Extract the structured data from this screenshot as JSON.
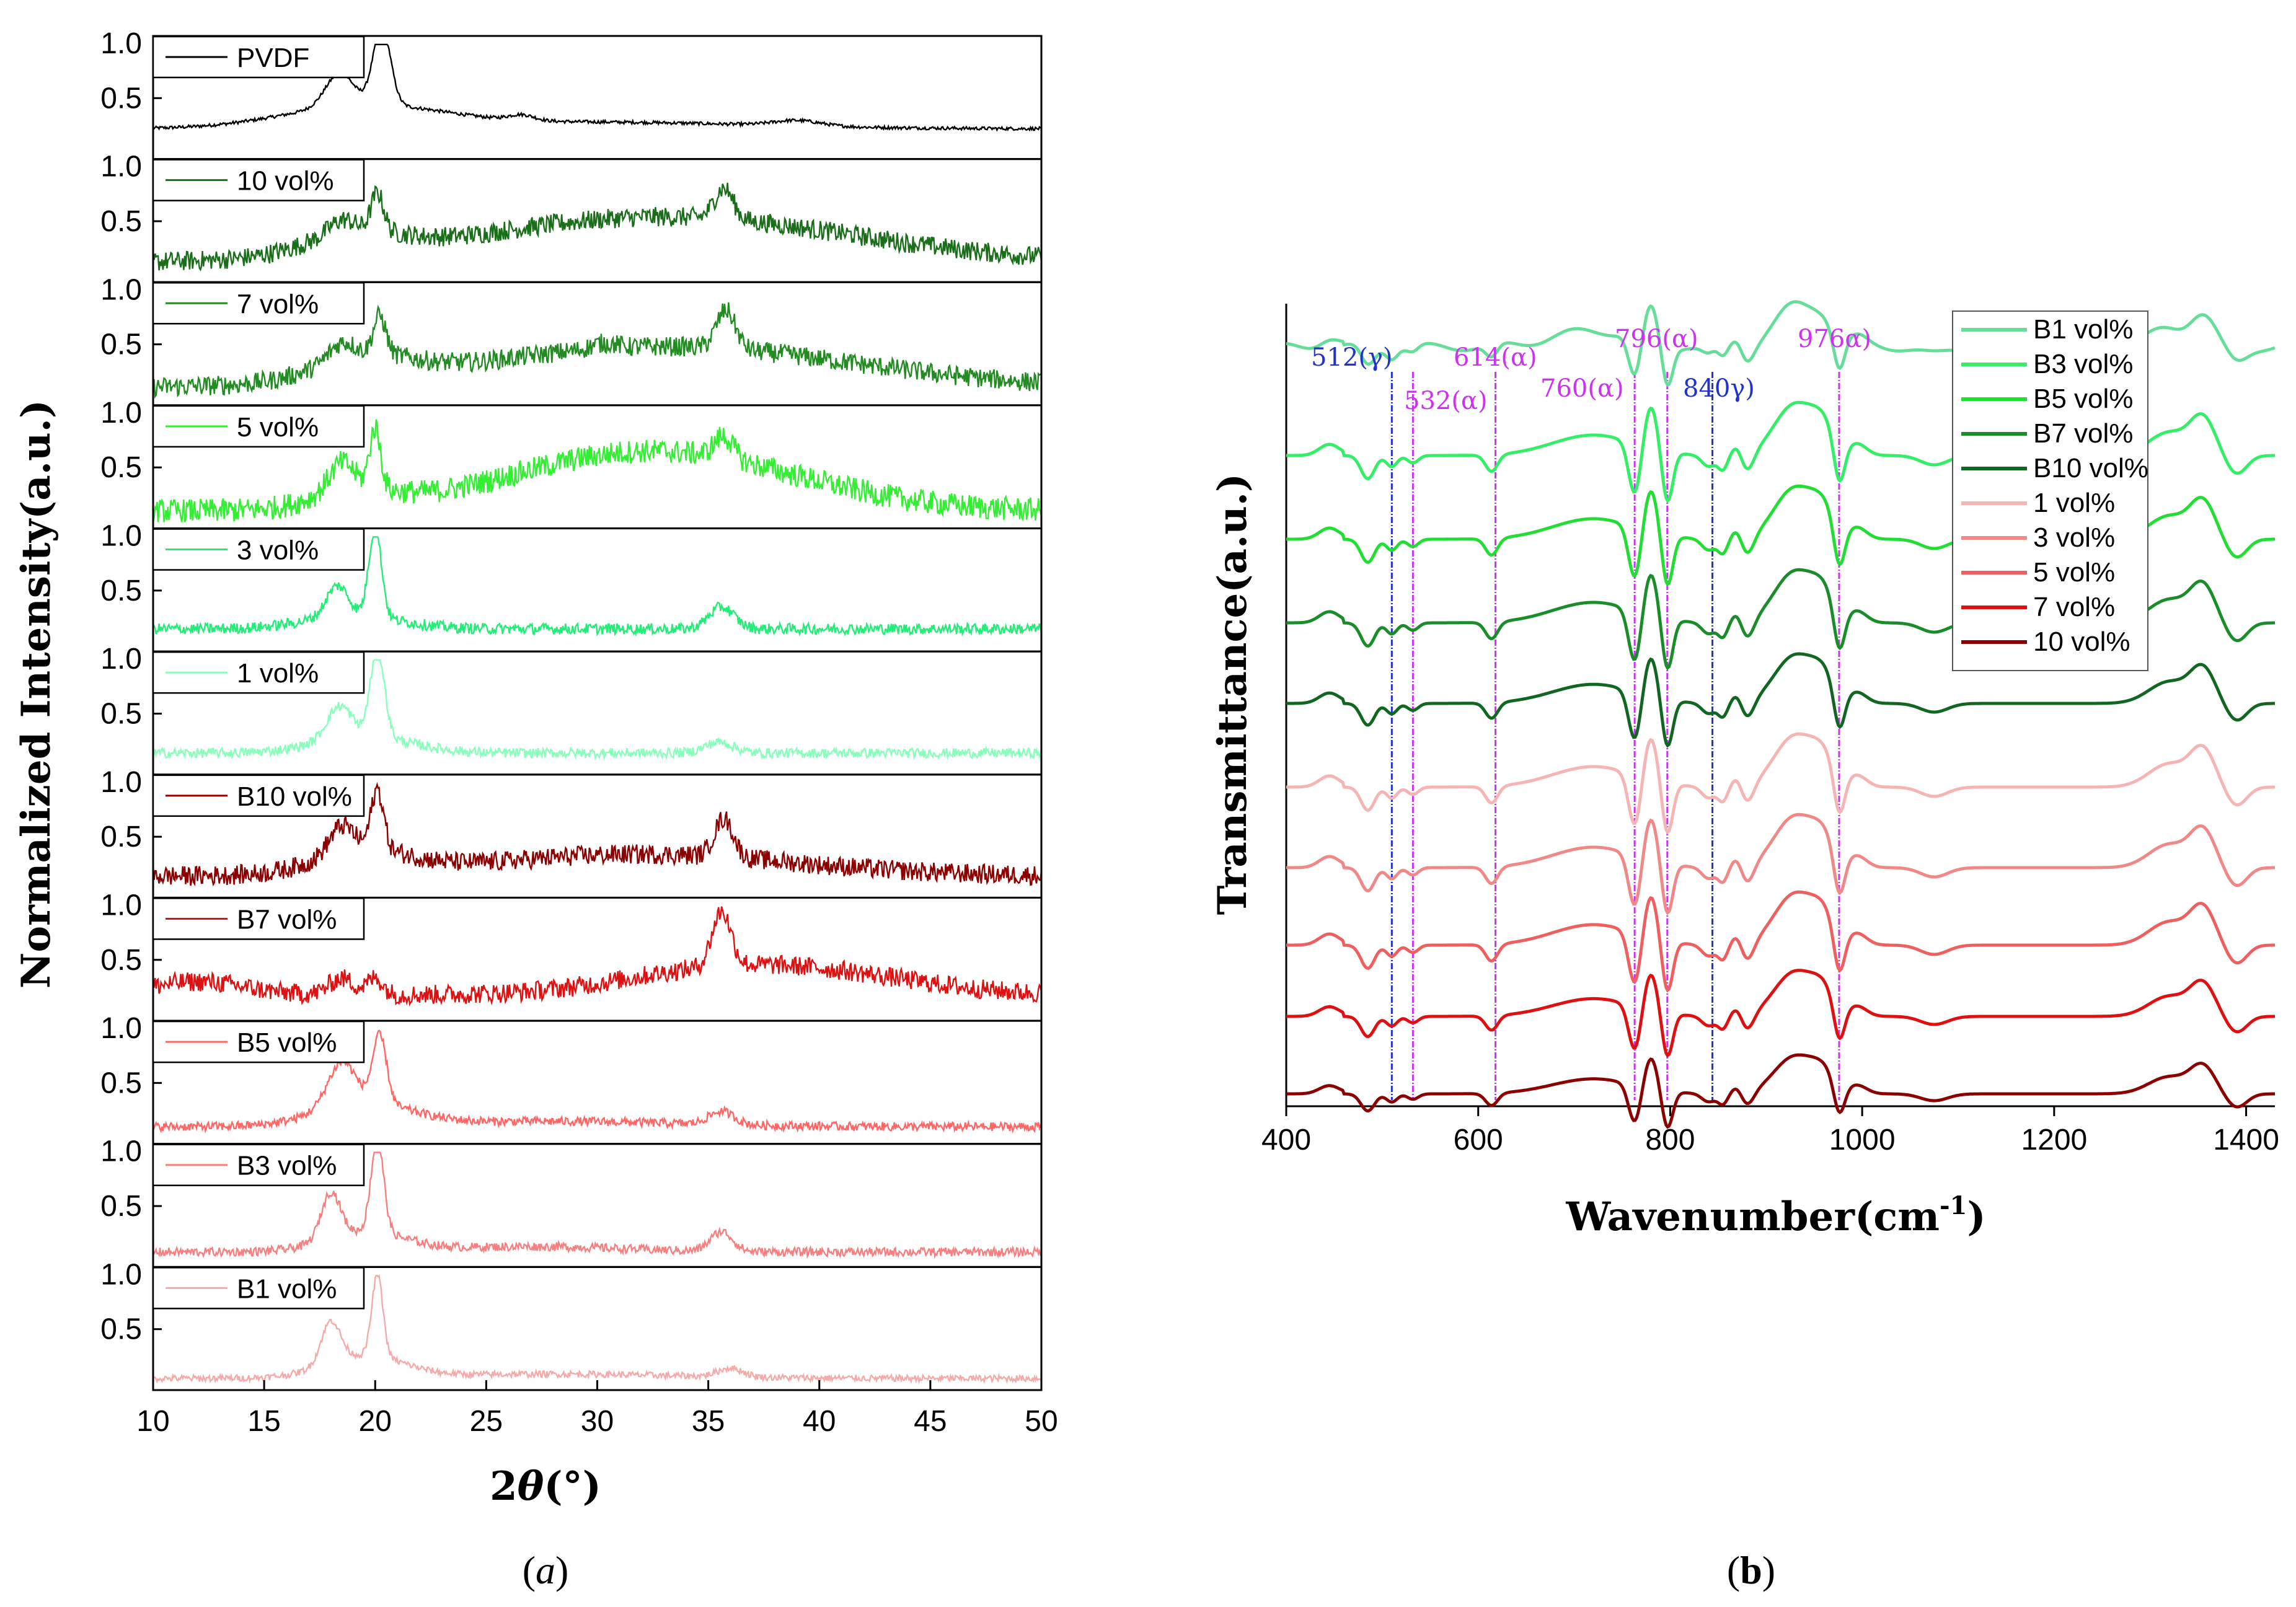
{
  "chart_data": [
    {
      "panel": "(a)",
      "caption": {
        "open": "(",
        "letter": "a",
        "close": ")"
      },
      "type": "line",
      "subtype": "stacked-xrd",
      "xlabel": {
        "prefix": "2",
        "theta": "θ",
        "unit": "(°)"
      },
      "ylabel": "Normalized Intensity(a.u.)",
      "xlim": [
        10,
        50
      ],
      "xticks": [
        "10",
        "15",
        "20",
        "25",
        "30",
        "35",
        "40",
        "45",
        "50"
      ],
      "yticks": [
        "1.0",
        "0.5"
      ],
      "bottom_yticks": [
        "1.0",
        "0.5"
      ],
      "series": [
        {
          "name": "PVDF",
          "color": "#000000",
          "base": 0.22,
          "noise": 0.015,
          "peaks": [
            [
              18.4,
              0.3,
              0.9
            ],
            [
              20.3,
              0.72,
              0.55
            ],
            [
              26.6,
              0.05,
              0.8
            ],
            [
              39.0,
              0.05,
              1.5
            ]
          ],
          "hump": [
            [
              19.5,
              0.2,
              5.0
            ],
            [
              30.0,
              0.06,
              10.0
            ]
          ]
        },
        {
          "name": "10 vol%",
          "color": "#1a6e1a",
          "base": 0.12,
          "noise": 0.09,
          "peaks": [
            [
              18.5,
              0.12,
              0.8
            ],
            [
              20.1,
              0.35,
              0.4
            ],
            [
              35.7,
              0.28,
              0.6
            ]
          ],
          "hump": [
            [
              33.0,
              0.42,
              12.0
            ],
            [
              19.0,
              0.18,
              3.0
            ]
          ]
        },
        {
          "name": "7 vol%",
          "color": "#228b22",
          "base": 0.1,
          "noise": 0.09,
          "peaks": [
            [
              18.5,
              0.15,
              0.8
            ],
            [
              20.2,
              0.35,
              0.4
            ],
            [
              35.8,
              0.35,
              0.6
            ],
            [
              30.3,
              0.05,
              0.8
            ]
          ],
          "hump": [
            [
              33.0,
              0.38,
              12.0
            ],
            [
              19.5,
              0.2,
              3.0
            ]
          ]
        },
        {
          "name": "5 vol%",
          "color": "#33ee33",
          "base": 0.1,
          "noise": 0.11,
          "peaks": [
            [
              18.5,
              0.25,
              0.8
            ],
            [
              20.0,
              0.55,
              0.35
            ],
            [
              35.7,
              0.2,
              0.6
            ]
          ],
          "hump": [
            [
              32.5,
              0.55,
              9.0
            ],
            [
              19.0,
              0.15,
              2.5
            ]
          ]
        },
        {
          "name": "3 vol%",
          "color": "#22ee77",
          "base": 0.15,
          "noise": 0.05,
          "peaks": [
            [
              18.3,
              0.28,
              0.7
            ],
            [
              20.0,
              0.82,
              0.4
            ],
            [
              35.6,
              0.2,
              0.8
            ]
          ],
          "hump": [
            [
              19.0,
              0.12,
              3.0
            ]
          ]
        },
        {
          "name": "1 vol%",
          "color": "#88ffbb",
          "base": 0.14,
          "noise": 0.045,
          "peaks": [
            [
              18.4,
              0.3,
              0.8
            ],
            [
              20.1,
              0.8,
              0.45
            ],
            [
              35.5,
              0.1,
              0.9
            ]
          ],
          "hump": [
            [
              19.5,
              0.15,
              3.0
            ]
          ]
        },
        {
          "name": "B10 vol%",
          "color": "#8b0000",
          "base": 0.14,
          "noise": 0.09,
          "peaks": [
            [
              18.5,
              0.25,
              0.8
            ],
            [
              20.1,
              0.55,
              0.4
            ],
            [
              35.7,
              0.35,
              0.6
            ]
          ],
          "hump": [
            [
              19.5,
              0.2,
              3.0
            ],
            [
              32.0,
              0.2,
              10.0
            ]
          ]
        },
        {
          "name": "B7 vol%",
          "color": "#dd1111",
          "base": 0.18,
          "noise": 0.09,
          "peaks": [
            [
              18.5,
              0.15,
              0.8
            ],
            [
              20.0,
              0.15,
              0.5
            ],
            [
              35.6,
              0.5,
              0.6
            ]
          ],
          "hump": [
            [
              12.0,
              0.12,
              3.0
            ],
            [
              35.0,
              0.2,
              6.0
            ],
            [
              41.0,
              0.15,
              6.0
            ]
          ]
        },
        {
          "name": "B5 vol%",
          "color": "#ff6666",
          "base": 0.1,
          "noise": 0.04,
          "peaks": [
            [
              18.5,
              0.4,
              0.9
            ],
            [
              20.2,
              0.62,
              0.45
            ],
            [
              35.6,
              0.12,
              0.8
            ]
          ],
          "hump": [
            [
              19.5,
              0.2,
              3.0
            ],
            [
              28.0,
              0.05,
              8.0
            ]
          ]
        },
        {
          "name": "B3 vol%",
          "color": "#f58080",
          "base": 0.08,
          "noise": 0.04,
          "peaks": [
            [
              18.0,
              0.42,
              0.6
            ],
            [
              20.1,
              0.85,
              0.4
            ],
            [
              35.6,
              0.18,
              0.7
            ]
          ],
          "hump": [
            [
              19.5,
              0.18,
              2.5
            ],
            [
              27.0,
              0.05,
              6.0
            ]
          ]
        },
        {
          "name": "B1 vol%",
          "color": "#f5aaaa",
          "base": 0.05,
          "noise": 0.03,
          "peaks": [
            [
              18.0,
              0.38,
              0.6
            ],
            [
              20.1,
              0.75,
              0.35
            ],
            [
              36.0,
              0.08,
              0.8
            ]
          ],
          "hump": [
            [
              19.5,
              0.2,
              2.5
            ],
            [
              28.0,
              0.04,
              8.0
            ]
          ]
        }
      ]
    },
    {
      "panel": "(b)",
      "caption": {
        "open": "(",
        "letter": "b",
        "close": ")"
      },
      "type": "line",
      "subtype": "ftir",
      "xlabel": {
        "main": "Wavenumber(cm",
        "sup": "-1",
        "close": ")"
      },
      "ylabel": "Transmittance(a.u.)",
      "xlim": [
        400,
        1430
      ],
      "xticks": [
        "400",
        "600",
        "800",
        "1000",
        "1200",
        "1400"
      ],
      "xtick_values": [
        400,
        600,
        800,
        1000,
        1200,
        1400
      ],
      "annotations": [
        {
          "text": "512(γ)",
          "x": 510,
          "color": "#2233cc"
        },
        {
          "text": "532(α)",
          "x": 532,
          "color": "#cc33ee"
        },
        {
          "text": "614(α)",
          "x": 618,
          "color": "#cc33ee"
        },
        {
          "text": "760(α)",
          "x": 763,
          "color": "#cc33ee"
        },
        {
          "text": "796(α)",
          "x": 797,
          "color": "#cc33ee"
        },
        {
          "text": "840γ)",
          "x": 844,
          "color": "#2233cc"
        },
        {
          "text": "976α)",
          "x": 976,
          "color": "#cc33ee"
        }
      ],
      "series": [
        {
          "name": "B1 vol%",
          "color": "#66dd99"
        },
        {
          "name": "B3 vol%",
          "color": "#33ee66"
        },
        {
          "name": "B5 vol%",
          "color": "#22dd33"
        },
        {
          "name": "B7 vol%",
          "color": "#1a8c2a"
        },
        {
          "name": "B10 vol%",
          "color": "#116622"
        },
        {
          "name": "1 vol%",
          "color": "#f5b5b5"
        },
        {
          "name": "3 vol%",
          "color": "#f08888"
        },
        {
          "name": "5 vol%",
          "color": "#ee6060"
        },
        {
          "name": "7 vol%",
          "color": "#dd1111"
        },
        {
          "name": "10 vol%",
          "color": "#8b0000"
        }
      ]
    }
  ]
}
